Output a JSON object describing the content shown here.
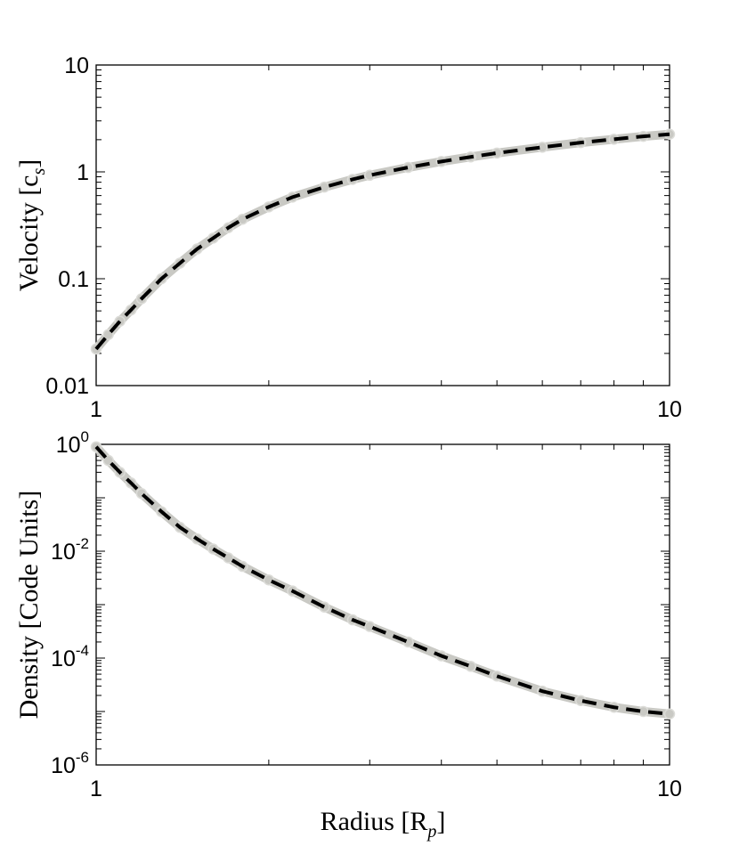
{
  "chart_data": [
    {
      "type": "line",
      "ylabel": "Velocity [c",
      "ylabel_sub": "s",
      "ylabel_close": "]",
      "xscale": "log",
      "yscale": "log",
      "xlim": [
        1,
        10
      ],
      "ylim": [
        0.01,
        10
      ],
      "grid": false,
      "xtick_labels": [
        "1",
        "10"
      ],
      "ytick_labels": [
        "0.01",
        "0.1",
        "1",
        "10"
      ],
      "series": [
        {
          "style": "gray circle markers (simulation)",
          "color": "#c9c9c4",
          "x": [
            1.0,
            1.05,
            1.1,
            1.15,
            1.2,
            1.3,
            1.4,
            1.5,
            1.6,
            1.7,
            1.8,
            2.0,
            2.2,
            2.5,
            2.8,
            3.0,
            3.5,
            4.0,
            4.5,
            5.0,
            6.0,
            7.0,
            8.0,
            9.0,
            10.0
          ],
          "y": [
            0.022,
            0.03,
            0.04,
            0.051,
            0.065,
            0.1,
            0.14,
            0.19,
            0.24,
            0.3,
            0.36,
            0.47,
            0.58,
            0.72,
            0.85,
            0.93,
            1.1,
            1.25,
            1.38,
            1.5,
            1.7,
            1.88,
            2.02,
            2.15,
            2.25
          ]
        },
        {
          "style": "black dashed line (analytic)",
          "color": "#000000",
          "x": [
            1.0,
            1.05,
            1.1,
            1.15,
            1.2,
            1.3,
            1.4,
            1.5,
            1.6,
            1.7,
            1.8,
            2.0,
            2.2,
            2.5,
            2.8,
            3.0,
            3.5,
            4.0,
            4.5,
            5.0,
            6.0,
            7.0,
            8.0,
            9.0,
            10.0
          ],
          "y": [
            0.022,
            0.03,
            0.04,
            0.051,
            0.065,
            0.1,
            0.14,
            0.19,
            0.24,
            0.3,
            0.36,
            0.47,
            0.58,
            0.72,
            0.85,
            0.93,
            1.1,
            1.25,
            1.38,
            1.5,
            1.7,
            1.88,
            2.02,
            2.15,
            2.25
          ]
        }
      ]
    },
    {
      "type": "line",
      "xlabel": "Radius [R",
      "xlabel_sub": "p",
      "xlabel_close": "]",
      "ylabel": "Density [Code Units]",
      "xscale": "log",
      "yscale": "log",
      "xlim": [
        1,
        10
      ],
      "ylim": [
        1e-06,
        1
      ],
      "grid": false,
      "xtick_labels": [
        "1",
        "10"
      ],
      "ytick_labels": [
        {
          "base": "10",
          "exp": "-6"
        },
        {
          "base": "10",
          "exp": "-4"
        },
        {
          "base": "10",
          "exp": "-2"
        },
        {
          "base": "10",
          "exp": "0"
        }
      ],
      "series": [
        {
          "style": "gray circle markers (simulation)",
          "color": "#c9c9c4",
          "x": [
            1.0,
            1.05,
            1.1,
            1.15,
            1.2,
            1.3,
            1.4,
            1.5,
            1.6,
            1.7,
            1.8,
            2.0,
            2.2,
            2.5,
            2.8,
            3.0,
            3.5,
            4.0,
            4.5,
            5.0,
            6.0,
            7.0,
            8.0,
            9.0,
            10.0
          ],
          "y": [
            0.9,
            0.5,
            0.3,
            0.19,
            0.12,
            0.055,
            0.028,
            0.017,
            0.011,
            0.0075,
            0.0052,
            0.0029,
            0.0018,
            0.0009,
            0.00052,
            0.00039,
            0.0002,
            0.00011,
            7e-05,
            4.6e-05,
            2.4e-05,
            1.6e-05,
            1.2e-05,
            1e-05,
            9e-06
          ]
        },
        {
          "style": "black dashed line (analytic)",
          "color": "#000000",
          "x": [
            1.0,
            1.05,
            1.1,
            1.15,
            1.2,
            1.3,
            1.4,
            1.5,
            1.6,
            1.7,
            1.8,
            2.0,
            2.2,
            2.5,
            2.8,
            3.0,
            3.5,
            4.0,
            4.5,
            5.0,
            6.0,
            7.0,
            8.0,
            9.0,
            10.0
          ],
          "y": [
            0.9,
            0.5,
            0.3,
            0.19,
            0.12,
            0.055,
            0.028,
            0.017,
            0.011,
            0.0075,
            0.0052,
            0.0029,
            0.0018,
            0.0009,
            0.00052,
            0.00039,
            0.0002,
            0.00011,
            7e-05,
            4.6e-05,
            2.4e-05,
            1.6e-05,
            1.2e-05,
            1e-05,
            9e-06
          ]
        }
      ]
    }
  ]
}
